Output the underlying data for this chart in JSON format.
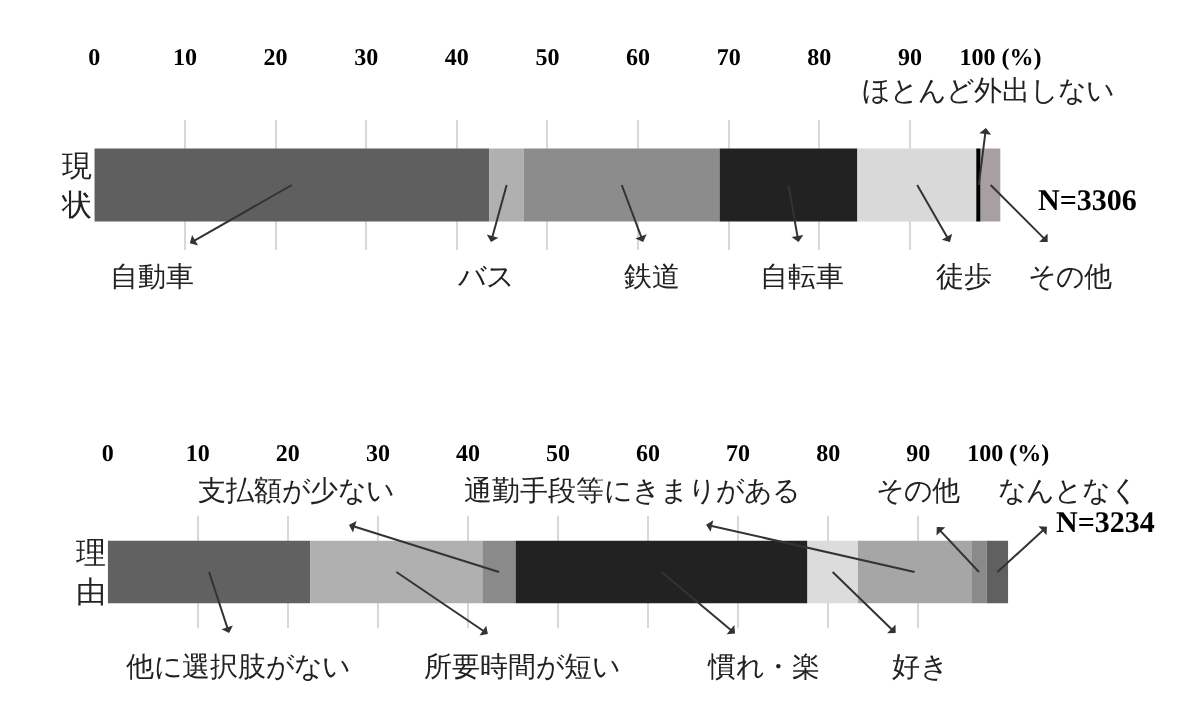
{
  "chart_data": [
    {
      "type": "bar",
      "orientation": "horizontal",
      "stacked": true,
      "categories": [
        "現状"
      ],
      "xlim": [
        0,
        100
      ],
      "xticks": [
        0,
        10,
        20,
        30,
        40,
        50,
        60,
        70,
        80,
        90,
        {
          "value": 100,
          "label": "100 (%)"
        }
      ],
      "grid": "x",
      "legend": false,
      "annotations": [
        "N=3306"
      ],
      "series": [
        {
          "name": "自動車",
          "color": "#5f5f5f",
          "values": [
            43.6
          ]
        },
        {
          "name": "バス",
          "color": "#b0b0b0",
          "values": [
            3.8
          ]
        },
        {
          "name": "鉄道",
          "color": "#8c8c8c",
          "values": [
            21.6
          ]
        },
        {
          "name": "自転車",
          "color": "#222222",
          "values": [
            15.2
          ]
        },
        {
          "name": "徒歩",
          "color": "#d9d9d9",
          "values": [
            13.2
          ]
        },
        {
          "name": "ほとんど外出しない",
          "color": "#000000",
          "values": [
            0.4
          ]
        },
        {
          "name": "その他",
          "color": "#a8a0a0",
          "values": [
            2.2
          ]
        }
      ]
    },
    {
      "type": "bar",
      "orientation": "horizontal",
      "stacked": true,
      "categories": [
        "理由"
      ],
      "xlim": [
        0,
        100
      ],
      "xticks": [
        0,
        10,
        20,
        30,
        40,
        50,
        60,
        70,
        80,
        90,
        {
          "value": 100,
          "label": "100 (%)"
        }
      ],
      "grid": "x",
      "legend": false,
      "annotations": [
        "N=3234"
      ],
      "series": [
        {
          "name": "他に選択肢がない",
          "color": "#616161",
          "values": [
            22.5
          ]
        },
        {
          "name": "所要時間が短い",
          "color": "#b0b0b0",
          "values": [
            19.1
          ]
        },
        {
          "name": "支払額が少ない",
          "color": "#8a8a8a",
          "values": [
            3.7
          ]
        },
        {
          "name": "慣れ・楽",
          "color": "#222222",
          "values": [
            32.4
          ]
        },
        {
          "name": "好き",
          "color": "#dcdcdc",
          "values": [
            5.6
          ]
        },
        {
          "name": "通勤手段等にきまりがある",
          "color": "#a6a6a6",
          "values": [
            12.6
          ]
        },
        {
          "name": "その他",
          "color": "#8a8a8a",
          "values": [
            1.7
          ]
        },
        {
          "name": "なんとなく",
          "color": "#606060",
          "values": [
            2.4
          ]
        }
      ]
    }
  ]
}
